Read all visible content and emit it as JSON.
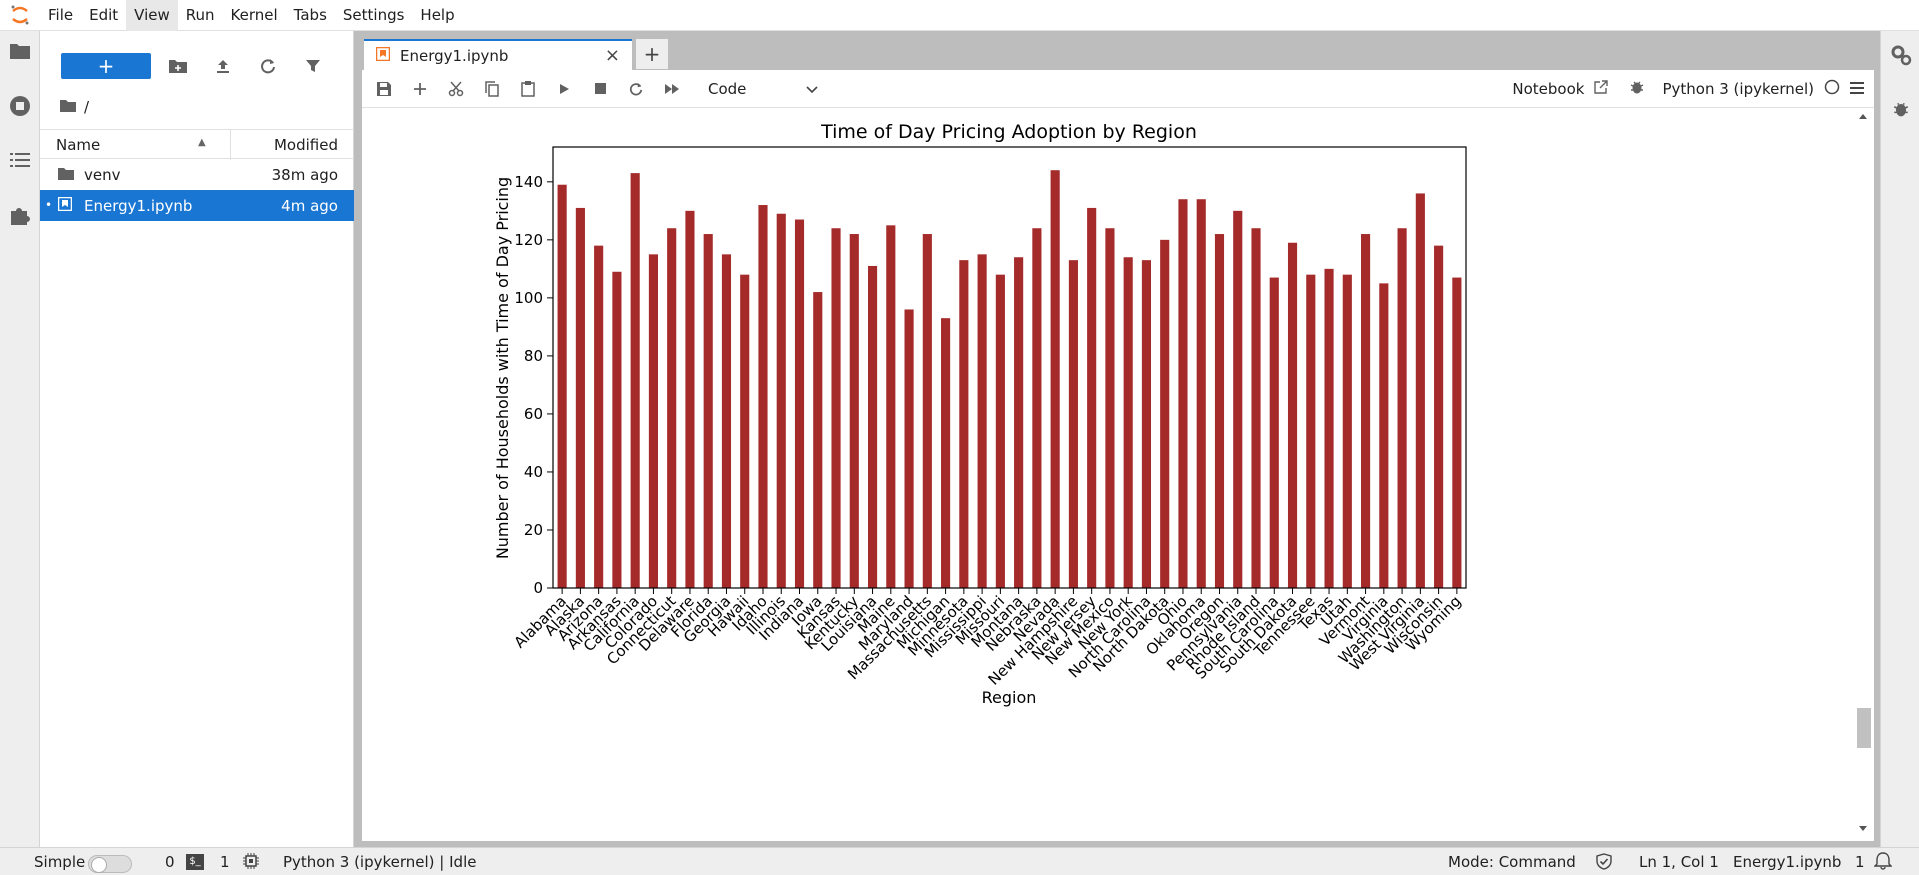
{
  "menubar": {
    "items": [
      "File",
      "Edit",
      "View",
      "Run",
      "Kernel",
      "Tabs",
      "Settings",
      "Help"
    ],
    "active_index": 2
  },
  "filebrowser": {
    "new_label": "+",
    "path": "/",
    "header_name": "Name",
    "header_modified": "Modified",
    "rows": [
      {
        "name": "venv",
        "modified": "38m ago",
        "icon": "folder-icon",
        "selected": false
      },
      {
        "name": "Energy1.ipynb",
        "modified": "4m ago",
        "icon": "notebook-icon",
        "selected": true
      }
    ]
  },
  "tabs": {
    "doc_title": "Energy1.ipynb",
    "add_label": "+"
  },
  "notebook": {
    "cell_type": "Code",
    "mode_label": "Notebook",
    "kernel": "Python 3 (ipykernel)"
  },
  "statusbar": {
    "mode": "Simple",
    "count_a": "0",
    "count_b": "1",
    "term_label": "$_",
    "kernel_status": "Python 3 (ipykernel) | Idle",
    "command_mode": "Mode: Command",
    "cursor": "Ln 1, Col 1",
    "file": "Energy1.ipynb",
    "notifications": "1"
  },
  "colors": {
    "accent": "#1976d2",
    "bar": "#a52a2a"
  },
  "chart_data": {
    "type": "bar",
    "title": "Time of Day Pricing Adoption by Region",
    "xlabel": "Region",
    "ylabel": "Number of Households with Time of Day Pricing",
    "ylim": [
      0,
      152
    ],
    "yticks": [
      0,
      20,
      40,
      60,
      80,
      100,
      120,
      140
    ],
    "categories": [
      "Alabama",
      "Alaska",
      "Arizona",
      "Arkansas",
      "California",
      "Colorado",
      "Connecticut",
      "Delaware",
      "Florida",
      "Georgia",
      "Hawaii",
      "Idaho",
      "Illinois",
      "Indiana",
      "Iowa",
      "Kansas",
      "Kentucky",
      "Louisiana",
      "Maine",
      "Maryland",
      "Massachusetts",
      "Michigan",
      "Minnesota",
      "Mississippi",
      "Missouri",
      "Montana",
      "Nebraska",
      "Nevada",
      "New Hampshire",
      "New Jersey",
      "New Mexico",
      "New York",
      "North Carolina",
      "North Dakota",
      "Ohio",
      "Oklahoma",
      "Oregon",
      "Pennsylvania",
      "Rhode Island",
      "South Carolina",
      "South Dakota",
      "Tennessee",
      "Texas",
      "Utah",
      "Vermont",
      "Virginia",
      "Washington",
      "West Virginia",
      "Wisconsin",
      "Wyoming"
    ],
    "values": [
      139,
      131,
      118,
      109,
      143,
      115,
      124,
      130,
      122,
      115,
      108,
      132,
      129,
      127,
      102,
      124,
      122,
      111,
      125,
      96,
      122,
      93,
      113,
      115,
      108,
      114,
      124,
      144,
      113,
      131,
      124,
      114,
      113,
      120,
      134,
      134,
      122,
      130,
      124,
      107,
      119,
      108,
      110,
      108,
      122,
      105,
      124,
      136,
      118,
      107
    ]
  }
}
